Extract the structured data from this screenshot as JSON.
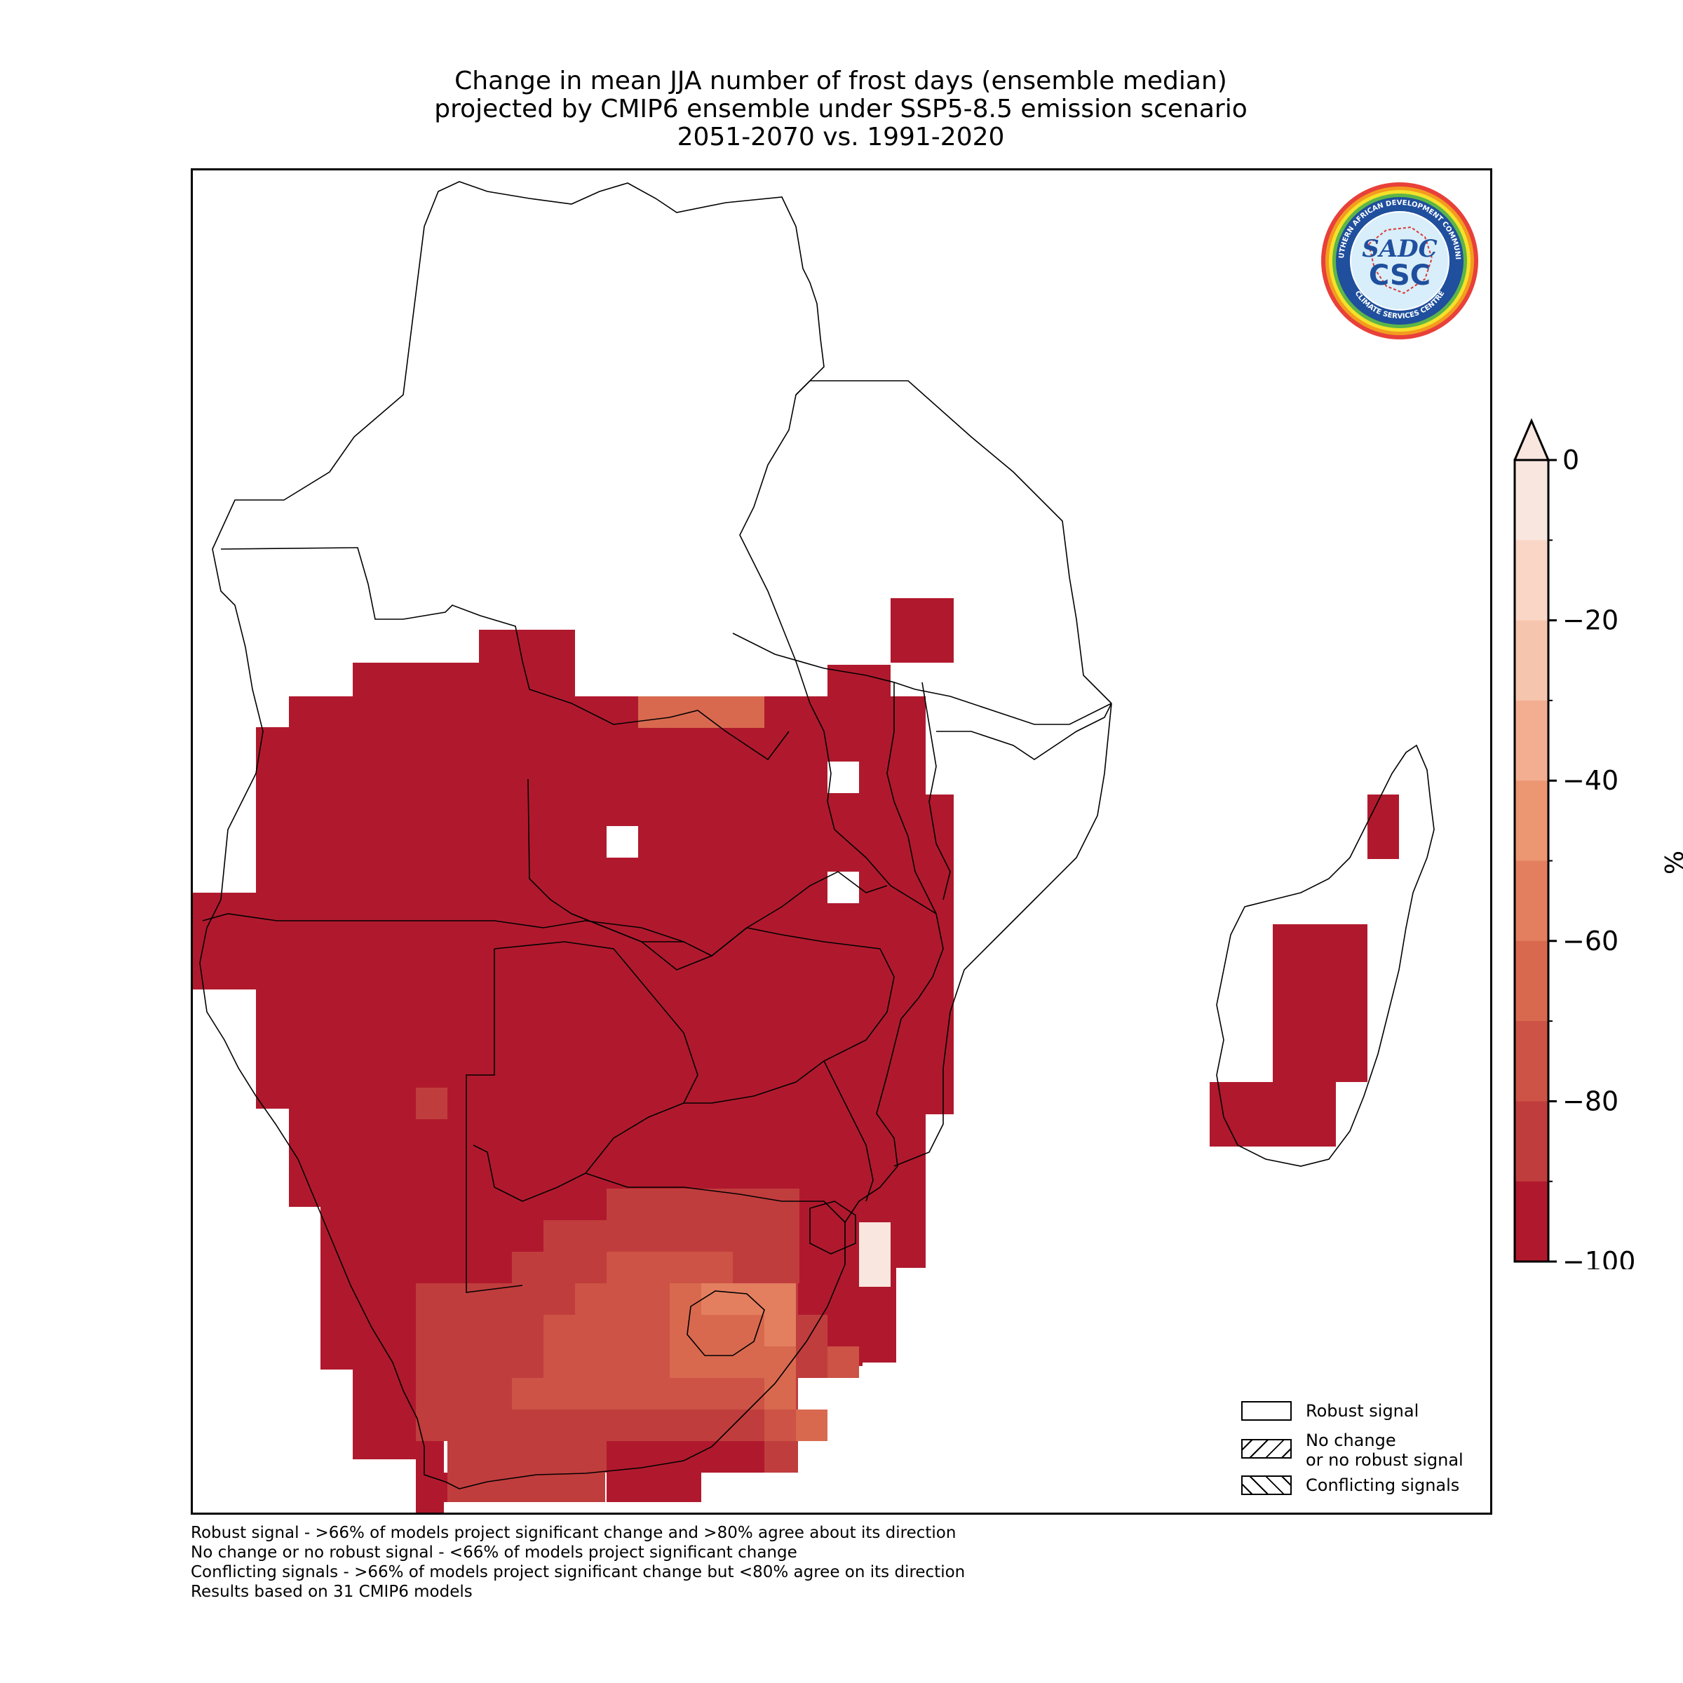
{
  "title": {
    "line1": "Change in mean JJA number of frost days (ensemble median)",
    "line2": "projected by CMIP6 ensemble under SSP5-8.5 emission scenario",
    "line3": "2051-2070 vs. 1991-2020"
  },
  "logo": {
    "ring_text_top": "SOUTHERN AFRICAN DEVELOPMENT COMMUNITY",
    "ring_text_bottom": "CLIMATE SERVICES CENTRE",
    "monogram_top": "SADC",
    "monogram_bottom": "CSC"
  },
  "colorbar": {
    "unit": "%",
    "ticks": [
      "0",
      "−20",
      "−40",
      "−60",
      "−80",
      "−100"
    ],
    "range": [
      -100,
      0
    ],
    "extend": "max",
    "colors": [
      "#f9e6df",
      "#f9d6c6",
      "#f6c5ad",
      "#f3ae91",
      "#ec9672",
      "#e37f5f",
      "#d8694f",
      "#cc5345",
      "#c03d3d",
      "#b0192d"
    ]
  },
  "legend": {
    "robust": "Robust signal",
    "no_change_line1": "No change",
    "no_change_line2": "or no robust signal",
    "conflicting": "Conflicting signals"
  },
  "footnotes": {
    "line1": "Robust signal - >66% of models project significant change and >80% agree about its direction",
    "line2": "No change or no robust signal - <66% of models project significant change",
    "line3": "Conflicting signals - >66% of models project significant change but <80% agree on its direction",
    "line4": "Results based on 31 CMIP6 models"
  }
}
